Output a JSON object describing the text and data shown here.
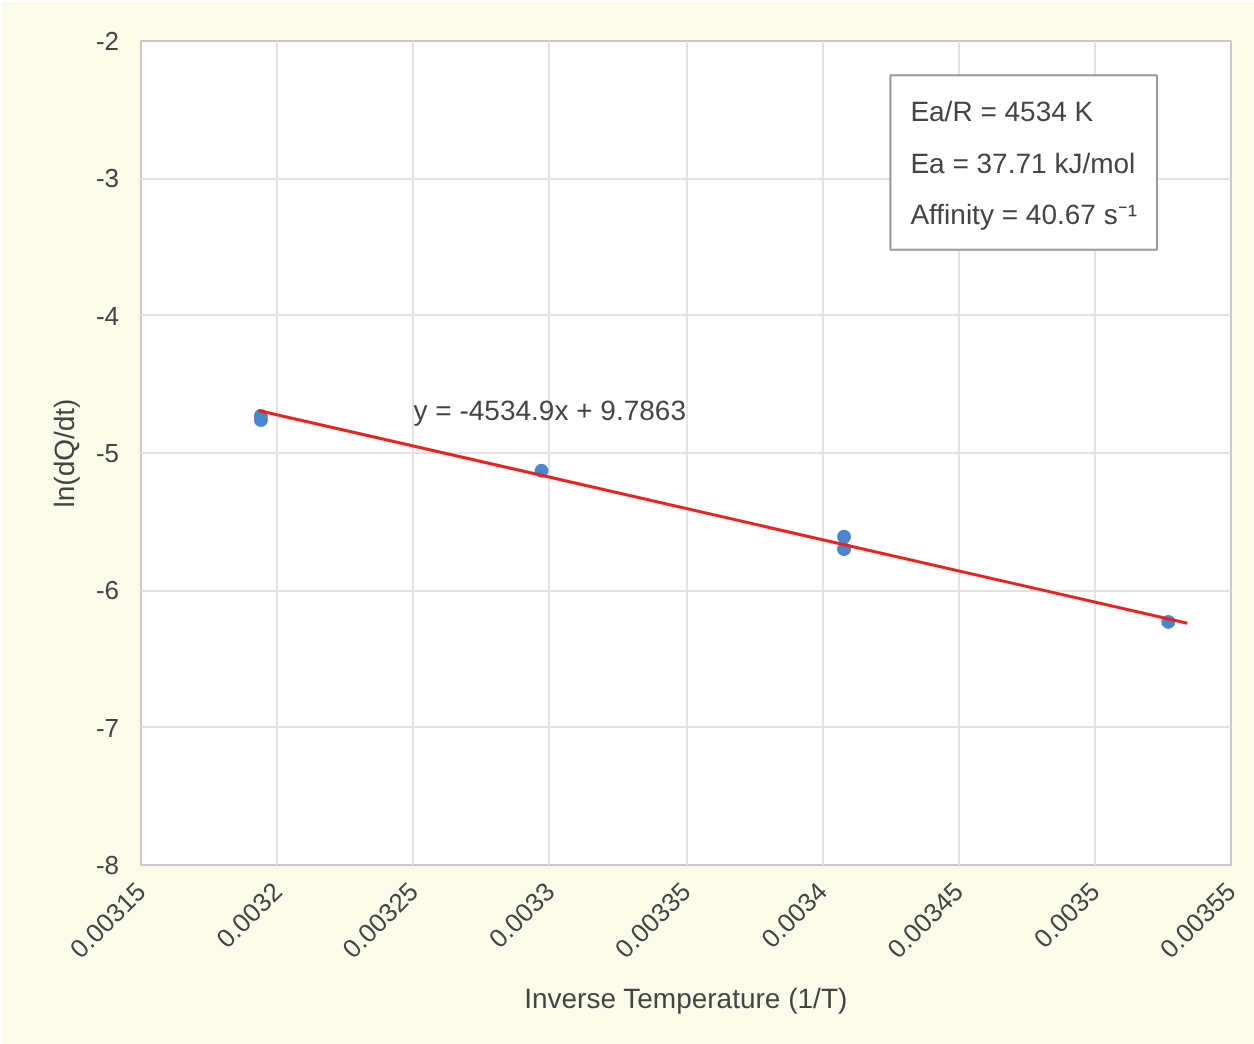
{
  "chart_data": {
    "type": "scatter",
    "xlabel": "Inverse Temperature (1/T)",
    "ylabel": "ln(dQ/dt)",
    "xlim": [
      0.00315,
      0.00355
    ],
    "ylim": [
      -8,
      -2
    ],
    "xticks": [
      0.00315,
      0.0032,
      0.00325,
      0.0033,
      0.00335,
      0.0034,
      0.00345,
      0.0035,
      0.00355
    ],
    "yticks": [
      -8,
      -7,
      -6,
      -5,
      -4,
      -3,
      -2
    ],
    "grid": true,
    "marker": "circle",
    "series": [
      {
        "color": "#4a86d0",
        "x": [
          0.003194,
          0.003194,
          0.003297,
          0.003408,
          0.003408,
          0.003527
        ],
        "values": [
          -4.73,
          -4.76,
          -5.13,
          -5.61,
          -5.7,
          -6.23
        ]
      },
      {
        "type": "line",
        "marker": "none",
        "color": "#e8231e",
        "x": [
          0.003193,
          0.003534
        ],
        "values": [
          -4.69,
          -6.24
        ]
      }
    ],
    "annotations": [
      "y = -4534.9x + 9.7863",
      "Ea/R = 4534 K",
      "Ea = 37.71 kJ/mol",
      "Affinity = 40.67 s⁻¹"
    ]
  }
}
